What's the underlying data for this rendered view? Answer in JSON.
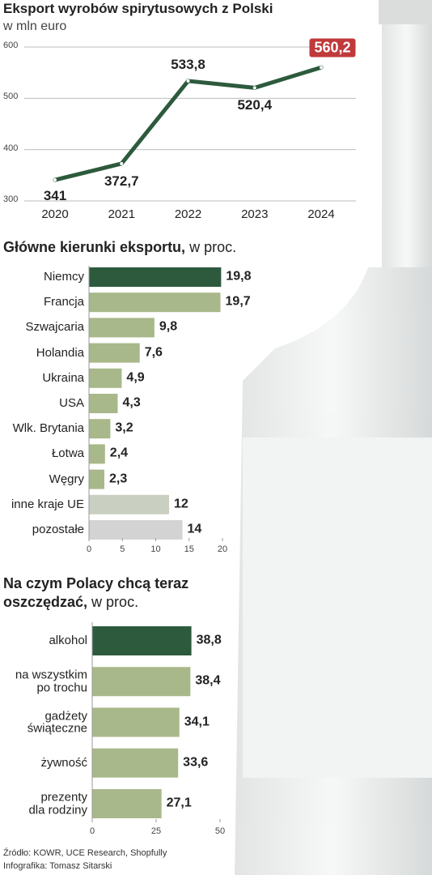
{
  "chart_data": [
    {
      "type": "line",
      "title": "Eksport wyrobów spirytusowych z Polski",
      "subtitle": "w mln euro",
      "categories": [
        "2020",
        "2021",
        "2022",
        "2023",
        "2024"
      ],
      "values": [
        341,
        372.7,
        533.8,
        520.4,
        560.2
      ],
      "value_labels": [
        "341",
        "372,7",
        "533,8",
        "520,4",
        "560,2"
      ],
      "color": "#2d5a3d",
      "ylim": [
        300,
        600
      ],
      "yticks": [
        300,
        400,
        500,
        600
      ],
      "grid": true
    },
    {
      "type": "hbar",
      "title": "Główne kierunki eksportu,",
      "subtitle": "w proc.",
      "categories": [
        "Niemcy",
        "Francja",
        "Szwajcaria",
        "Holandia",
        "Ukraina",
        "USA",
        "Wlk. Brytania",
        "Łotwa",
        "Węgry",
        "inne kraje UE",
        "pozostałe"
      ],
      "values": [
        19.8,
        19.7,
        9.8,
        7.6,
        4.9,
        4.3,
        3.2,
        2.4,
        2.3,
        12,
        14
      ],
      "value_labels": [
        "19,8",
        "19,7",
        "9,8",
        "7,6",
        "4,9",
        "4,3",
        "3,2",
        "2,4",
        "2,3",
        "12",
        "14"
      ],
      "colors": [
        "#2d5a3d",
        "#a8b88a",
        "#a8b88a",
        "#a8b88a",
        "#a8b88a",
        "#a8b88a",
        "#a8b88a",
        "#a8b88a",
        "#a8b88a",
        "#c9d0c1",
        "#d3d3d3"
      ],
      "xlim": [
        0,
        20
      ],
      "xticks": [
        0,
        5,
        10,
        15,
        20
      ]
    },
    {
      "type": "hbar",
      "title": "Na czym Polacy chcą teraz oszczędzać,",
      "subtitle": "w proc.",
      "categories": [
        "alkohol",
        "na wszystkim\npo trochu",
        "gadżety\nświąteczne",
        "żywność",
        "prezenty\ndla rodziny"
      ],
      "values": [
        38.8,
        38.4,
        34.1,
        33.6,
        27.1
      ],
      "value_labels": [
        "38,8",
        "38,4",
        "34,1",
        "33,6",
        "27,1"
      ],
      "colors": [
        "#2d5a3d",
        "#a8b88a",
        "#a8b88a",
        "#a8b88a",
        "#a8b88a"
      ],
      "xlim": [
        0,
        50
      ],
      "xticks": [
        0,
        25,
        50
      ]
    }
  ],
  "footer": {
    "source": "Źródło: KOWR, UCE Research, Shopfully",
    "credit": "Infografika: Tomasz Sitarski"
  }
}
